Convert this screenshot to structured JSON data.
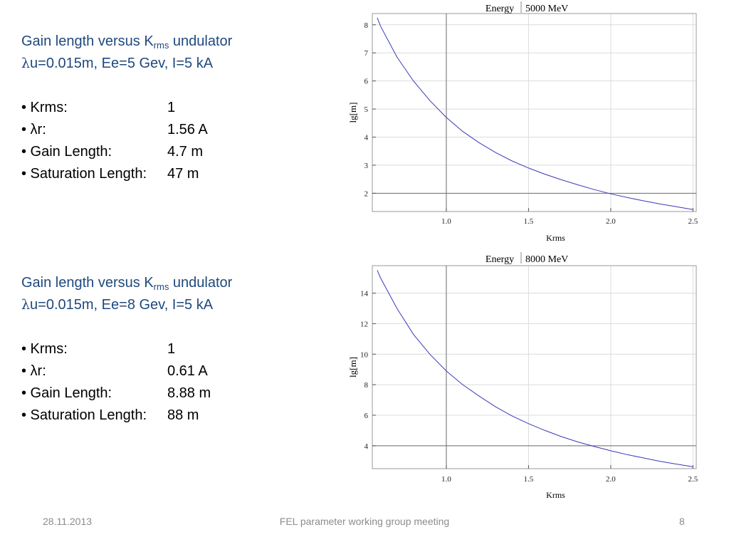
{
  "slide": {
    "block1": {
      "heading_pre": "Gain length versus K",
      "heading_sub": "rms",
      "heading_post": " undulator",
      "heading_line2_lambda": "λ",
      "heading_line2_rest": "u=0.015m, Ee=5 Gev, I=5 kA",
      "bullets": [
        {
          "label": "• Krms:",
          "value": "1"
        },
        {
          "label": "•  λr:",
          "value": "1.56 A"
        },
        {
          "label": "• Gain Length:",
          "value": "4.7 m"
        },
        {
          "label": "• Saturation Length:",
          "value": "47 m"
        }
      ]
    },
    "block2": {
      "heading_pre": "Gain length versus K",
      "heading_sub": "rms",
      "heading_post": " undulator",
      "heading_line2_lambda": "λ",
      "heading_line2_rest": "u=0.015m, Ee=8 Gev, I=5 kA",
      "bullets": [
        {
          "label": "•  Krms:",
          "value": "1"
        },
        {
          "label": "•  λr:",
          "value": "0.61 A"
        },
        {
          "label": "• Gain Length:",
          "value": "8.88 m"
        },
        {
          "label": "• Saturation Length:",
          "value": "88 m"
        }
      ]
    },
    "footer": {
      "date": "28.11.2013",
      "title": "FEL parameter working group meeting",
      "page": "8"
    }
  },
  "colors": {
    "heading": "#1f497d",
    "curve": "#3a3ab8",
    "footer": "#8c8c8c"
  },
  "chart_data": [
    {
      "type": "line",
      "title_label": "Energy",
      "title_value": "5000 MeV",
      "xlabel": "Krms",
      "ylabel": "lg[m]",
      "xlim": [
        0.55,
        2.52
      ],
      "ylim": [
        1.35,
        8.4
      ],
      "x_ticks": [
        1.0,
        1.5,
        2.0,
        2.5
      ],
      "x_tick_labels": [
        "1.0",
        "1.5",
        "2.0",
        "2.5"
      ],
      "y_ticks": [
        2,
        3,
        4,
        5,
        6,
        7,
        8
      ],
      "y_tick_labels": [
        "2",
        "3",
        "4",
        "5",
        "6",
        "7",
        "8"
      ],
      "grid": true,
      "series": [
        {
          "x": [
            0.58,
            0.6,
            0.7,
            0.8,
            0.9,
            1.0,
            1.1,
            1.2,
            1.3,
            1.4,
            1.5,
            1.6,
            1.7,
            1.8,
            1.9,
            2.0,
            2.1,
            2.2,
            2.3,
            2.4,
            2.5
          ],
          "y": [
            8.25,
            7.95,
            6.85,
            6.0,
            5.3,
            4.7,
            4.2,
            3.8,
            3.45,
            3.15,
            2.9,
            2.68,
            2.48,
            2.3,
            2.13,
            1.98,
            1.85,
            1.73,
            1.62,
            1.52,
            1.42
          ]
        }
      ]
    },
    {
      "type": "line",
      "title_label": "Energy",
      "title_value": "8000 MeV",
      "xlabel": "Krms",
      "ylabel": "lg[m]",
      "xlim": [
        0.55,
        2.52
      ],
      "ylim": [
        2.5,
        15.8
      ],
      "x_ticks": [
        1.0,
        1.5,
        2.0,
        2.5
      ],
      "x_tick_labels": [
        "1.0",
        "1.5",
        "2.0",
        "2.5"
      ],
      "y_ticks": [
        4,
        6,
        8,
        10,
        12,
        14
      ],
      "y_tick_labels": [
        "4",
        "6",
        "8",
        "10",
        "12",
        "14"
      ],
      "grid": true,
      "series": [
        {
          "x": [
            0.58,
            0.6,
            0.7,
            0.8,
            0.9,
            1.0,
            1.1,
            1.2,
            1.3,
            1.4,
            1.5,
            1.6,
            1.7,
            1.8,
            1.9,
            2.0,
            2.1,
            2.2,
            2.3,
            2.4,
            2.5
          ],
          "y": [
            15.5,
            15.0,
            13.0,
            11.3,
            10.0,
            8.9,
            8.0,
            7.25,
            6.55,
            5.95,
            5.45,
            5.0,
            4.6,
            4.25,
            3.95,
            3.67,
            3.42,
            3.2,
            2.98,
            2.8,
            2.62
          ]
        }
      ]
    }
  ]
}
